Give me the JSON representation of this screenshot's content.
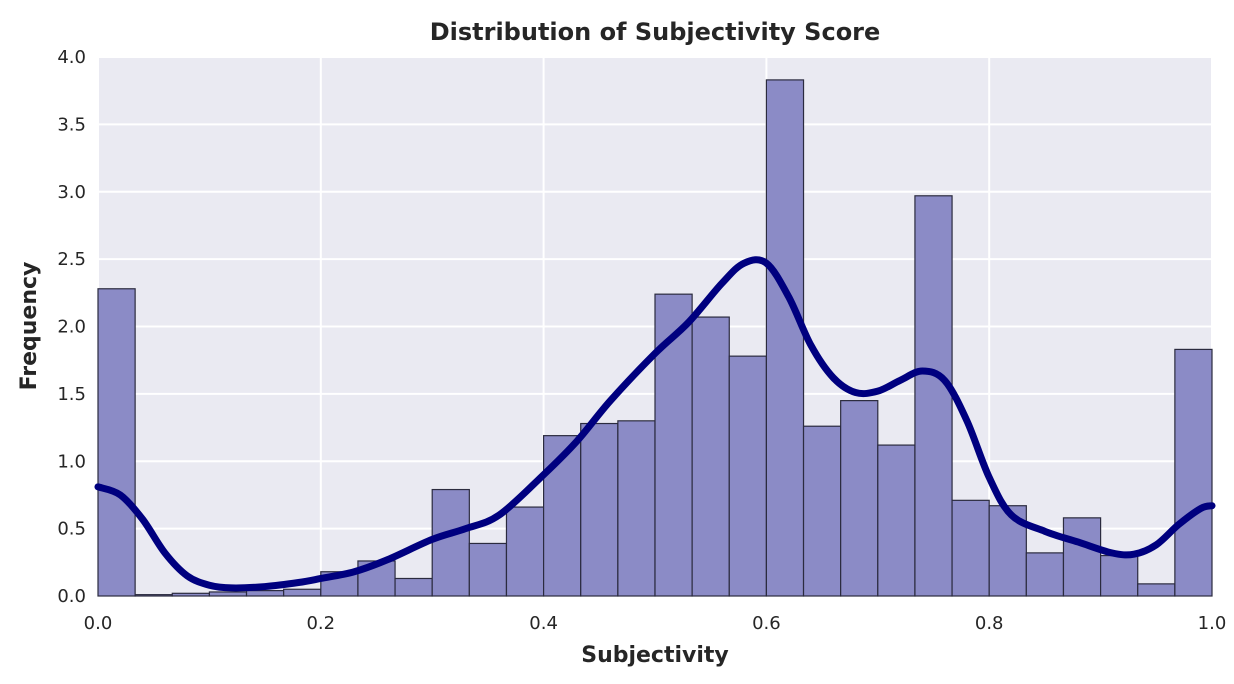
{
  "chart_data": {
    "type": "bar",
    "title": "Distribution of Subjectivity Score",
    "xlabel": "Subjectivity",
    "ylabel": "Frequency",
    "xlim": [
      0.0,
      1.0
    ],
    "ylim": [
      0.0,
      4.0
    ],
    "x_ticks": [
      "0.0",
      "0.2",
      "0.4",
      "0.6",
      "0.8",
      "1.0"
    ],
    "y_ticks": [
      "0.0",
      "0.5",
      "1.0",
      "1.5",
      "2.0",
      "2.5",
      "3.0",
      "3.5",
      "4.0"
    ],
    "grid": true,
    "bins": {
      "start": 0.0,
      "end": 1.0,
      "count": 30,
      "values": [
        2.28,
        0.01,
        0.02,
        0.03,
        0.04,
        0.05,
        0.18,
        0.26,
        0.13,
        0.79,
        0.39,
        0.66,
        1.19,
        1.28,
        1.3,
        2.24,
        2.07,
        1.78,
        3.83,
        1.26,
        1.45,
        1.12,
        2.97,
        0.71,
        0.67,
        0.32,
        0.58,
        0.3,
        0.09,
        1.83
      ]
    },
    "kde": {
      "x": [
        0.0,
        0.02,
        0.04,
        0.06,
        0.08,
        0.1,
        0.12,
        0.15,
        0.18,
        0.2,
        0.23,
        0.26,
        0.3,
        0.33,
        0.36,
        0.4,
        0.43,
        0.46,
        0.5,
        0.53,
        0.56,
        0.58,
        0.6,
        0.62,
        0.64,
        0.66,
        0.68,
        0.7,
        0.72,
        0.74,
        0.76,
        0.78,
        0.8,
        0.82,
        0.85,
        0.88,
        0.91,
        0.93,
        0.95,
        0.97,
        0.99,
        1.0
      ],
      "y": [
        0.81,
        0.75,
        0.57,
        0.32,
        0.15,
        0.08,
        0.06,
        0.07,
        0.1,
        0.13,
        0.18,
        0.27,
        0.42,
        0.5,
        0.6,
        0.9,
        1.15,
        1.45,
        1.8,
        2.03,
        2.32,
        2.47,
        2.47,
        2.22,
        1.86,
        1.62,
        1.51,
        1.52,
        1.6,
        1.67,
        1.6,
        1.3,
        0.88,
        0.6,
        0.48,
        0.4,
        0.32,
        0.31,
        0.38,
        0.53,
        0.65,
        0.67
      ]
    },
    "colors": {
      "bar_fill": "#8b8bc6",
      "bar_edge": "#2b2b3f",
      "kde_line": "#00007f",
      "plot_bg": "#eaeaf2",
      "grid": "#ffffff"
    }
  }
}
